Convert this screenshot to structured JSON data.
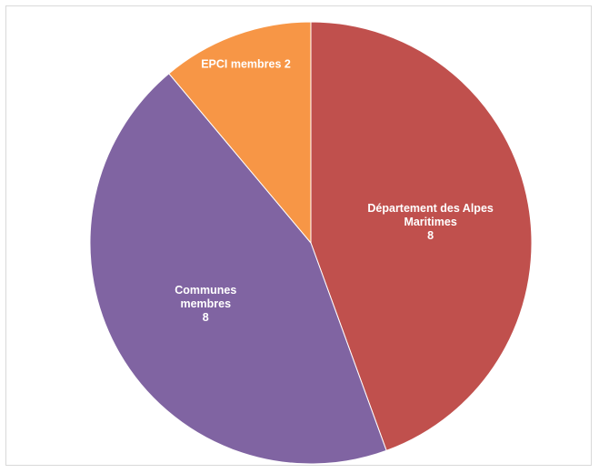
{
  "chart_data": {
    "type": "pie",
    "slices": [
      {
        "label_lines": [
          "Département des Alpes",
          "Maritimes"
        ],
        "value": 8,
        "value_text": "8",
        "color": "#C0504D"
      },
      {
        "label_lines": [
          "Communes",
          "membres"
        ],
        "value": 8,
        "value_text": "8",
        "color": "#8064A2"
      },
      {
        "label_lines": [
          "EPCI membres 2"
        ],
        "value": 2,
        "value_text": "",
        "color": "#F79646"
      }
    ],
    "start_angle_deg": 0,
    "direction": "clockwise",
    "legend": "none"
  }
}
